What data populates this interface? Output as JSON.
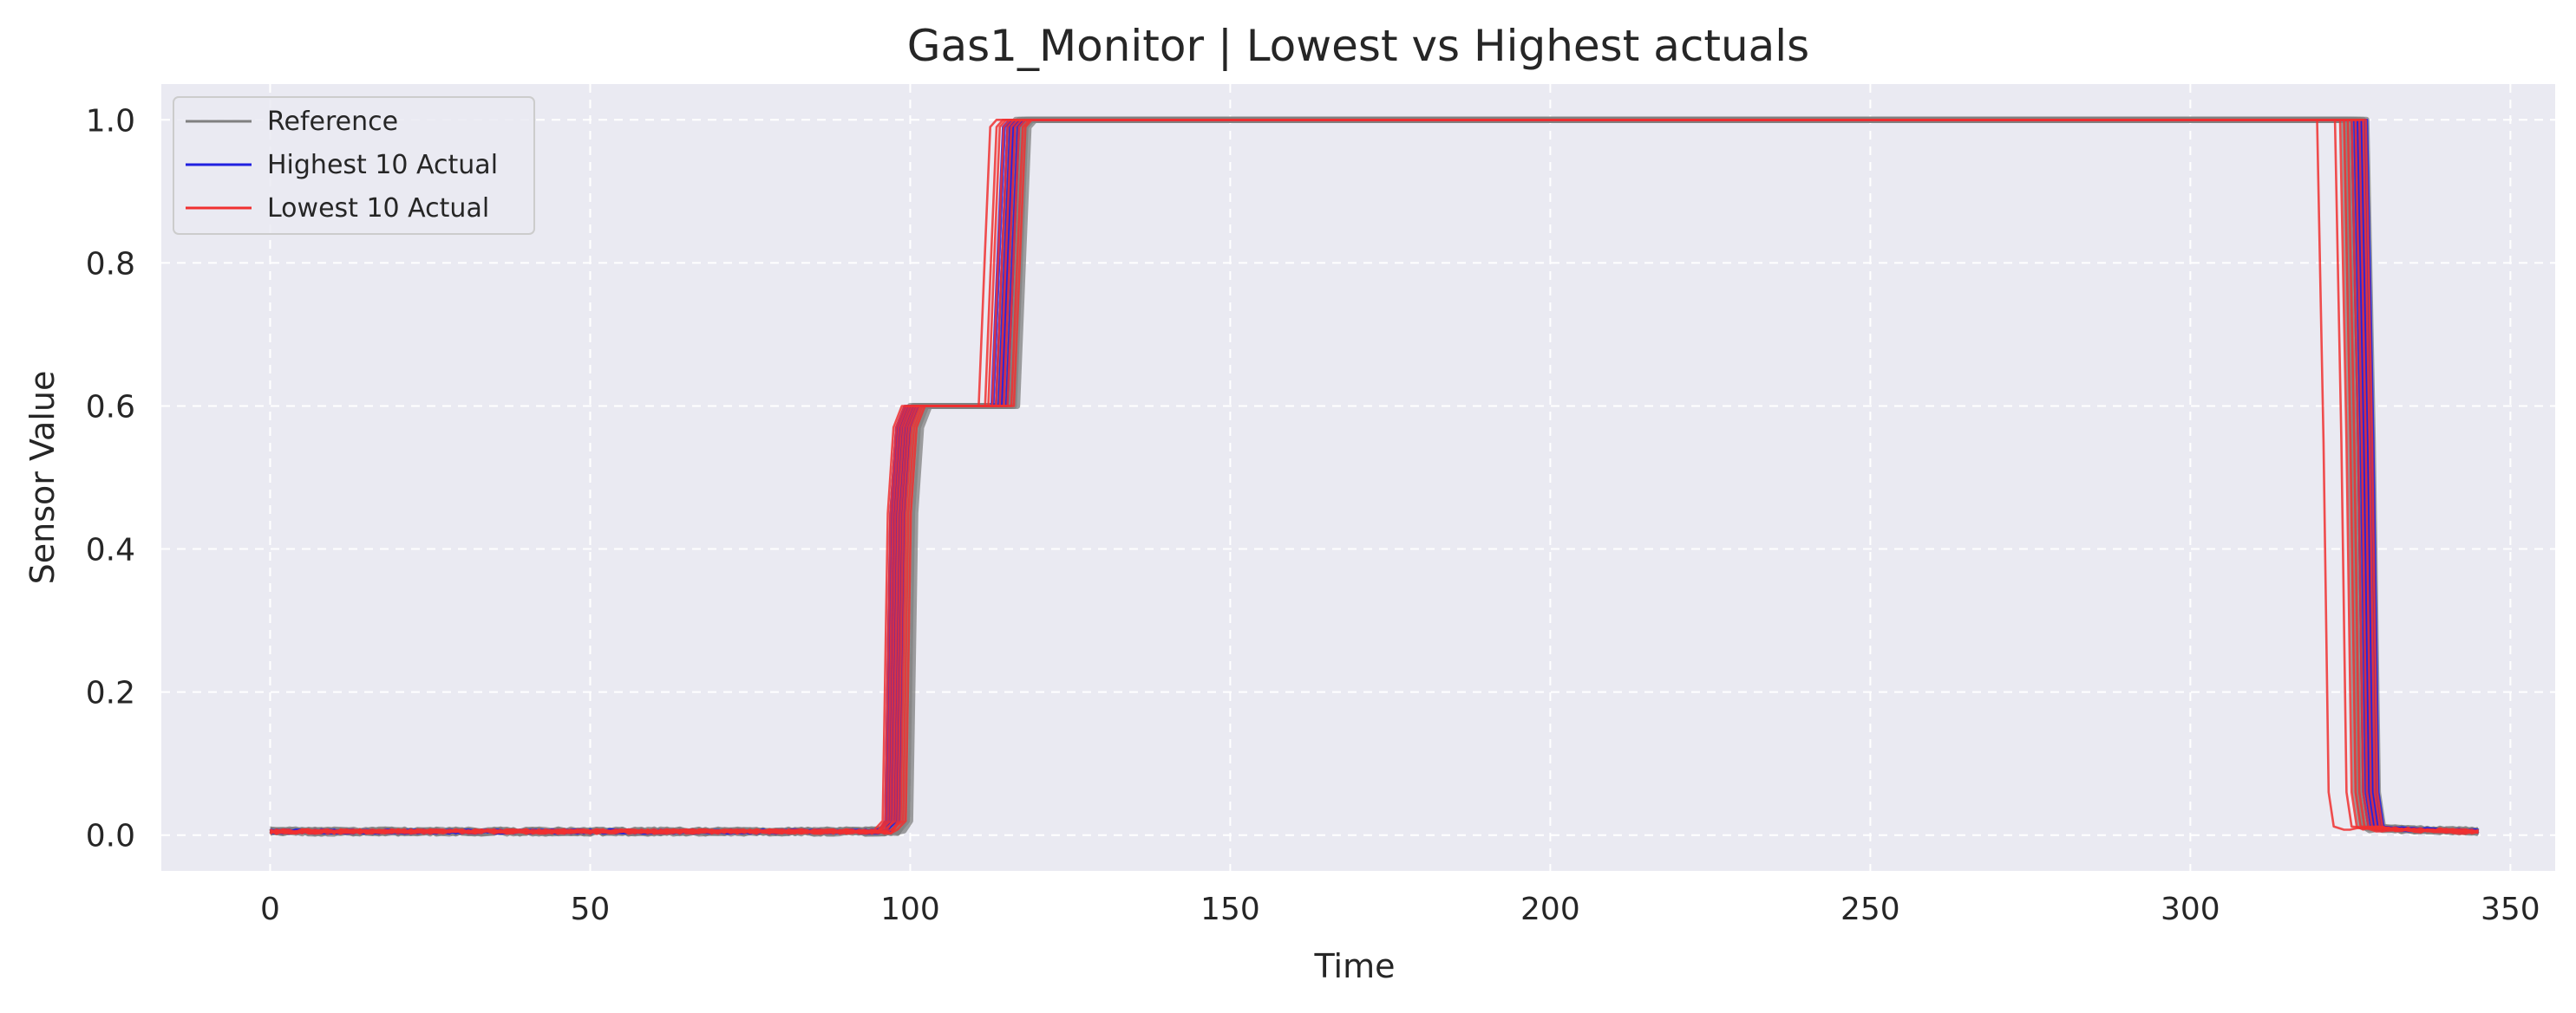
{
  "chart_data": {
    "type": "line",
    "title": "Gas1_Monitor | Lowest vs Highest actuals",
    "xlabel": "Time",
    "ylabel": "Sensor Value",
    "xlim": [
      -17,
      357
    ],
    "ylim": [
      -0.05,
      1.05
    ],
    "x_ticks": [
      0,
      50,
      100,
      150,
      200,
      250,
      300,
      350
    ],
    "y_ticks": [
      0.0,
      0.2,
      0.4,
      0.6,
      0.8,
      1.0
    ],
    "x_tick_labels": [
      "0",
      "50",
      "100",
      "150",
      "200",
      "250",
      "300",
      "350"
    ],
    "y_tick_labels": [
      "0.0",
      "0.2",
      "0.4",
      "0.6",
      "0.8",
      "1.0"
    ],
    "grid": true,
    "legend_position": "top-left",
    "legend": [
      {
        "label": "Reference",
        "color": "#808080"
      },
      {
        "label": "Highest 10 Actual",
        "color": "#2020e0"
      },
      {
        "label": "Lowest 10 Actual",
        "color": "#f03030"
      }
    ],
    "colors": {
      "background": "#eaeaf2",
      "grid": "#ffffff",
      "reference": "#808080",
      "highest": "#2020e0",
      "lowest": "#f03030"
    },
    "series": [
      {
        "group": "Reference",
        "color": "#808080",
        "step1": 97.5,
        "step2": 114.5,
        "fall": 324.0,
        "end": 345
      },
      {
        "group": "Reference",
        "color": "#808080",
        "step1": 98.0,
        "step2": 115.0,
        "fall": 324.5,
        "end": 345
      },
      {
        "group": "Reference",
        "color": "#808080",
        "step1": 98.5,
        "step2": 115.5,
        "fall": 325.0,
        "end": 345
      },
      {
        "group": "Reference",
        "color": "#808080",
        "step1": 99.0,
        "step2": 116.0,
        "fall": 325.5,
        "end": 345
      },
      {
        "group": "Reference",
        "color": "#808080",
        "step1": 99.5,
        "step2": 116.5,
        "fall": 326.0,
        "end": 345
      },
      {
        "group": "Reference",
        "color": "#808080",
        "step1": 100.0,
        "step2": 117.0,
        "fall": 326.5,
        "end": 345
      },
      {
        "group": "Reference",
        "color": "#808080",
        "step1": 100.5,
        "step2": 117.5,
        "fall": 327.0,
        "end": 345
      },
      {
        "group": "Reference",
        "color": "#808080",
        "step1": 98.2,
        "step2": 116.2,
        "fall": 327.5,
        "end": 345
      },
      {
        "group": "Highest 10 Actual",
        "color": "#2020e0",
        "step1": 96.8,
        "step2": 113.8,
        "fall": 325.6,
        "end": 345
      },
      {
        "group": "Highest 10 Actual",
        "color": "#2020e0",
        "step1": 97.2,
        "step2": 114.2,
        "fall": 326.0,
        "end": 345
      },
      {
        "group": "Highest 10 Actual",
        "color": "#2020e0",
        "step1": 97.6,
        "step2": 114.6,
        "fall": 326.4,
        "end": 345
      },
      {
        "group": "Highest 10 Actual",
        "color": "#2020e0",
        "step1": 98.0,
        "step2": 115.0,
        "fall": 326.8,
        "end": 345
      },
      {
        "group": "Highest 10 Actual",
        "color": "#2020e0",
        "step1": 98.4,
        "step2": 115.4,
        "fall": 327.2,
        "end": 345
      },
      {
        "group": "Highest 10 Actual",
        "color": "#2020e0",
        "step1": 96.6,
        "step2": 116.0,
        "fall": 325.2,
        "end": 345
      },
      {
        "group": "Highest 10 Actual",
        "color": "#2020e0",
        "step1": 97.0,
        "step2": 113.5,
        "fall": 326.2,
        "end": 345
      },
      {
        "group": "Highest 10 Actual",
        "color": "#2020e0",
        "step1": 98.8,
        "step2": 115.8,
        "fall": 327.6,
        "end": 345
      },
      {
        "group": "Highest 10 Actual",
        "color": "#2020e0",
        "step1": 97.4,
        "step2": 114.8,
        "fall": 325.8,
        "end": 345
      },
      {
        "group": "Highest 10 Actual",
        "color": "#2020e0",
        "step1": 98.2,
        "step2": 115.2,
        "fall": 326.6,
        "end": 345
      },
      {
        "group": "Lowest 10 Actual",
        "color": "#f03030",
        "step1": 96.2,
        "step2": 111.5,
        "fall": 319.8,
        "end": 345
      },
      {
        "group": "Lowest 10 Actual",
        "color": "#f03030",
        "step1": 96.6,
        "step2": 112.5,
        "fall": 322.6,
        "end": 345
      },
      {
        "group": "Lowest 10 Actual",
        "color": "#f03030",
        "step1": 97.0,
        "step2": 113.0,
        "fall": 323.4,
        "end": 345
      },
      {
        "group": "Lowest 10 Actual",
        "color": "#f03030",
        "step1": 97.4,
        "step2": 113.6,
        "fall": 324.0,
        "end": 345
      },
      {
        "group": "Lowest 10 Actual",
        "color": "#f03030",
        "step1": 97.8,
        "step2": 114.2,
        "fall": 324.6,
        "end": 345
      },
      {
        "group": "Lowest 10 Actual",
        "color": "#f03030",
        "step1": 98.2,
        "step2": 114.8,
        "fall": 325.2,
        "end": 345
      },
      {
        "group": "Lowest 10 Actual",
        "color": "#f03030",
        "step1": 98.6,
        "step2": 115.4,
        "fall": 325.8,
        "end": 345
      },
      {
        "group": "Lowest 10 Actual",
        "color": "#f03030",
        "step1": 99.0,
        "step2": 116.0,
        "fall": 326.4,
        "end": 345
      },
      {
        "group": "Lowest 10 Actual",
        "color": "#f03030",
        "step1": 99.4,
        "step2": 116.6,
        "fall": 327.0,
        "end": 345
      },
      {
        "group": "Lowest 10 Actual",
        "color": "#f03030",
        "step1": 99.8,
        "step2": 117.0,
        "fall": 327.4,
        "end": 345
      }
    ],
    "levels": {
      "baseline": 0.005,
      "mid": 0.6,
      "high": 1.0
    }
  }
}
